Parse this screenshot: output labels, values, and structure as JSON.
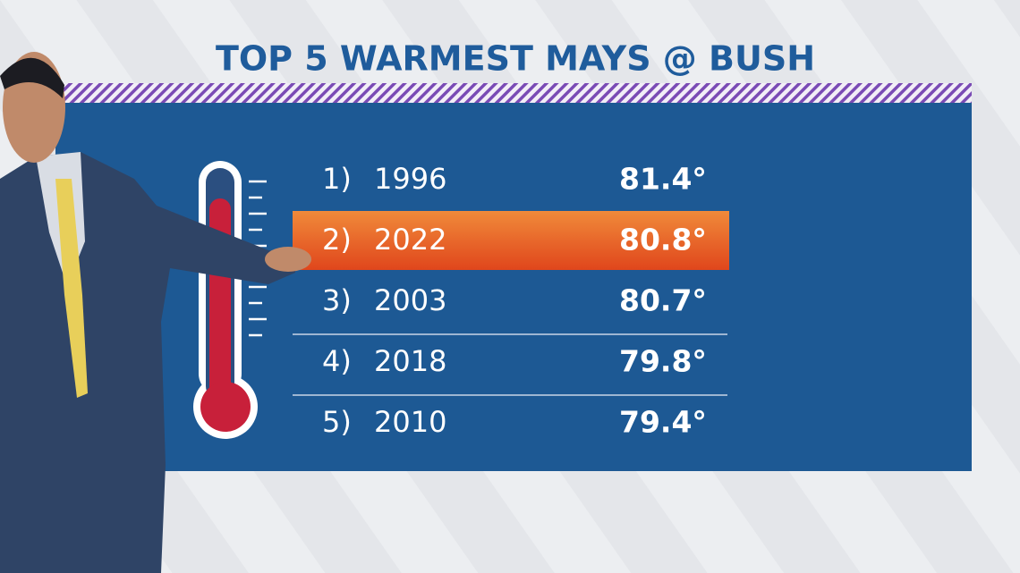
{
  "title": "TOP 5 WARMEST MAYS @ BUSH",
  "rows": [
    {
      "rank": "1)",
      "year": "1996",
      "temp": "81.4°",
      "highlighted": false
    },
    {
      "rank": "2)",
      "year": "2022",
      "temp": "80.8°",
      "highlighted": true
    },
    {
      "rank": "3)",
      "year": "2003",
      "temp": "80.7°",
      "highlighted": false
    },
    {
      "rank": "4)",
      "year": "2018",
      "temp": "79.8°",
      "highlighted": false
    },
    {
      "rank": "5)",
      "year": "2010",
      "temp": "79.4°",
      "highlighted": false
    }
  ]
}
